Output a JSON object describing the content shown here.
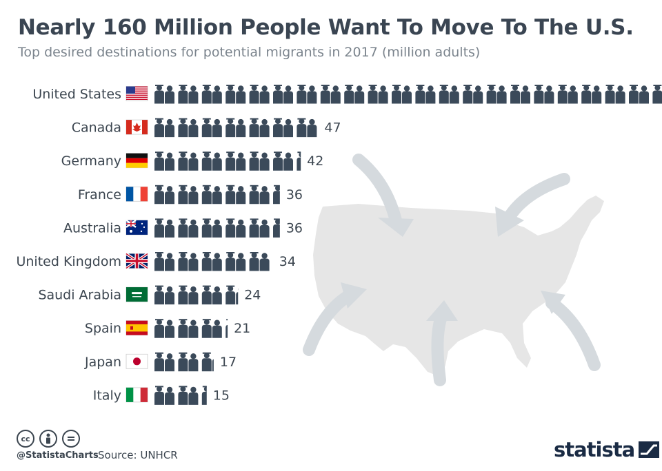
{
  "header": {
    "title": "Nearly 160 Million People Want To Move To The U.S.",
    "subtitle": "Top desired destinations for potential migrants in 2017 (million adults)"
  },
  "chart_data": {
    "type": "bar",
    "categories": [
      "United States",
      "Canada",
      "Germany",
      "France",
      "Australia",
      "United Kingdom",
      "Saudi Arabia",
      "Spain",
      "Japan",
      "Italy"
    ],
    "values": [
      158,
      47,
      42,
      36,
      36,
      34,
      24,
      21,
      17,
      15
    ],
    "xlabel": "",
    "ylabel": "",
    "xlim": [
      0,
      160
    ],
    "grid": false,
    "legend": "none",
    "flags": [
      "us-flag-icon",
      "canada-flag-icon",
      "germany-flag-icon",
      "france-flag-icon",
      "australia-flag-icon",
      "uk-flag-icon",
      "saudi-arabia-flag-icon",
      "spain-flag-icon",
      "japan-flag-icon",
      "italy-flag-icon"
    ]
  },
  "footer": {
    "handle": "@StatistaCharts",
    "source": "Source: UNHCR",
    "brand": "statista",
    "license_icons": [
      "cc-icon",
      "attribution-icon",
      "no-derivatives-icon"
    ]
  },
  "colors": {
    "pictogram": "#3b4a5a",
    "map": "#e8e8e8",
    "arrows": "#d5dade",
    "title": "#3a4552",
    "subtitle": "#7b848d",
    "brand": "#1a2b44"
  }
}
